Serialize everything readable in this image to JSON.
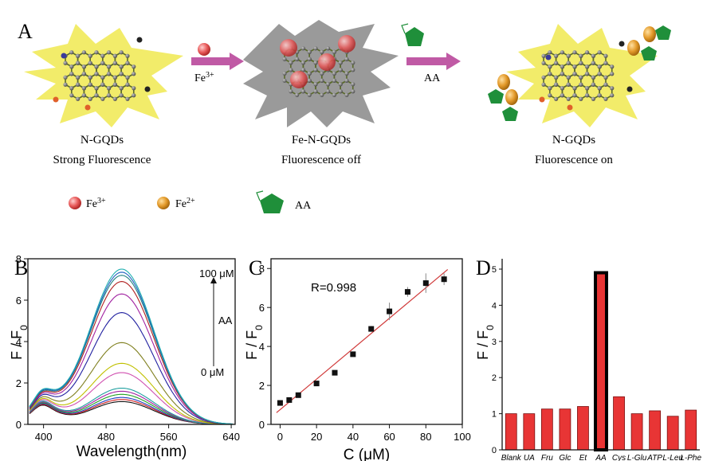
{
  "panel_a": {
    "panel_label": "A",
    "steps": [
      {
        "name": "N-GQDs",
        "caption": "Strong Fluorescence"
      },
      {
        "name": "Fe-N-GQDs",
        "caption": "Fluorescence off"
      },
      {
        "name": "N-GQDs",
        "caption": "Fluorescence on"
      }
    ],
    "arrow1_label": "Fe",
    "arrow1_sup": "3+",
    "arrow2_label": "AA",
    "legend": [
      {
        "label": "Fe",
        "sup": "3+",
        "icon": "red-sphere-icon"
      },
      {
        "label": "Fe",
        "sup": "2+",
        "icon": "orange-sphere-icon"
      },
      {
        "label": "AA",
        "sup": "",
        "icon": "green-pentagon-icon"
      }
    ],
    "colors": {
      "glow": "#f2ec6a",
      "dark_glow": "#9a9a9a",
      "carbon": "#6f6f6f",
      "bond": "#5a6a2a",
      "fe3": "#e85a5a",
      "fe2": "#e39a2a",
      "aa": "#1f8f3a",
      "arrow": "#c05aa5"
    }
  },
  "chart_data": [
    {
      "panel_label": "B",
      "type": "line",
      "xlabel": "Wavelength(nm)",
      "ylabel": "F / F",
      "ylabel_sub": "0",
      "xlim": [
        380,
        645
      ],
      "ylim": [
        0,
        8
      ],
      "xticks": [
        400,
        480,
        560,
        640
      ],
      "yticks": [
        0,
        2,
        4,
        6,
        8
      ],
      "annotation_top": "100 μM",
      "annotation_mid": "AA",
      "annotation_bottom": "0 μM",
      "peaks": [
        1.1,
        1.2,
        1.3,
        1.45,
        1.6,
        1.75,
        2.5,
        2.95,
        3.95,
        5.4,
        6.3,
        6.9,
        7.2,
        7.35,
        7.5
      ],
      "colors": [
        "#111111",
        "#d02020",
        "#2040c0",
        "#20a020",
        "#a020a0",
        "#20a0a0",
        "#d050b0",
        "#c0c000",
        "#808020",
        "#2020a0",
        "#a020a0",
        "#b02020",
        "#208080",
        "#2060c0",
        "#20b0b0"
      ]
    },
    {
      "panel_label": "C",
      "type": "scatter",
      "xlabel": "C  (μM)",
      "ylabel": "F / F",
      "ylabel_sub": "0",
      "annotation": "R=0.998",
      "xlim": [
        -5,
        100
      ],
      "ylim": [
        0,
        8.5
      ],
      "xticks": [
        0,
        20,
        40,
        60,
        80,
        100
      ],
      "yticks": [
        0,
        2,
        4,
        6,
        8
      ],
      "x": [
        0,
        5,
        10,
        20,
        30,
        40,
        50,
        60,
        70,
        80,
        90
      ],
      "y": [
        1.1,
        1.25,
        1.5,
        2.1,
        2.65,
        3.6,
        4.9,
        5.8,
        6.8,
        7.25,
        7.45
      ],
      "err": [
        0.08,
        0.08,
        0.1,
        0.1,
        0.12,
        0.12,
        0.15,
        0.45,
        0.25,
        0.5,
        0.3
      ],
      "fit": {
        "x0": -2,
        "y0": 0.6,
        "x1": 92,
        "y1": 7.95
      }
    },
    {
      "panel_label": "D",
      "type": "bar",
      "ylabel": "F / F",
      "ylabel_sub": "0",
      "ylim": [
        0,
        5
      ],
      "yticks": [
        0,
        1,
        2,
        3,
        4,
        5
      ],
      "categories": [
        "Blank",
        "UA",
        "Fru",
        "Glc",
        "Et",
        "AA",
        "Cys",
        "L-Glu",
        "ATP",
        "L-Leu",
        "L-Phe"
      ],
      "values": [
        1.0,
        1.0,
        1.13,
        1.13,
        1.2,
        4.9,
        1.47,
        1.0,
        1.08,
        0.93,
        1.1
      ],
      "highlight": "AA",
      "bar_color": "#e83535",
      "highlight_color": "#000000"
    }
  ]
}
